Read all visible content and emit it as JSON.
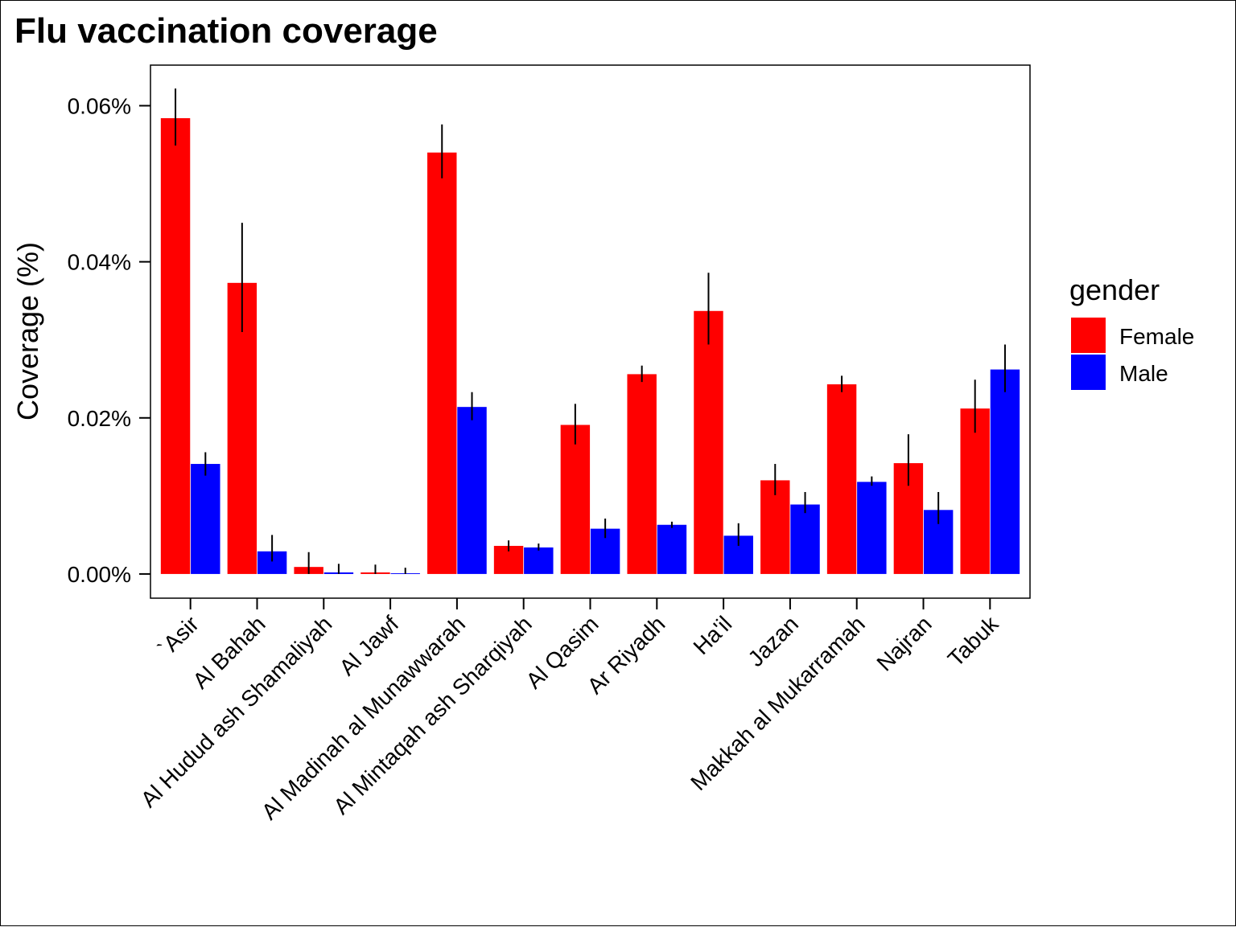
{
  "chart_data": {
    "type": "bar",
    "title": "Flu vaccination coverage",
    "xlabel": "",
    "ylabel": "Coverage (%)",
    "ylim": [
      -0.0031,
      0.0652
    ],
    "yticks": [
      0.0,
      0.02,
      0.04,
      0.06
    ],
    "ytick_labels": [
      "0.00%",
      "0.02%",
      "0.04%",
      "0.06%"
    ],
    "categories": [
      "`Asir",
      "Al Bahah",
      "Al Hudud ash Shamaliyah",
      "Al Jawf",
      "Al Madinah al Munawwarah",
      "Al Mintaqah ash Sharqiyah",
      "Al Qasim",
      "Ar Riyadh",
      "Ha'il",
      "Jazan",
      "Makkah al Mukarramah",
      "Najran",
      "Tabuk"
    ],
    "legend_title": "gender",
    "legend_position": "right",
    "grid": false,
    "series": [
      {
        "name": "Female",
        "color": "#ff0000",
        "values": [
          0.0584,
          0.0373,
          0.0009,
          0.0002,
          0.054,
          0.0036,
          0.0191,
          0.0256,
          0.0337,
          0.012,
          0.0243,
          0.0142,
          0.0212
        ],
        "err_low": [
          0.0549,
          0.031,
          0.0,
          0.0,
          0.0507,
          0.0029,
          0.0166,
          0.0246,
          0.0294,
          0.0101,
          0.0233,
          0.0113,
          0.0181
        ],
        "err_high": [
          0.0622,
          0.045,
          0.0028,
          0.0012,
          0.0576,
          0.0043,
          0.0218,
          0.0267,
          0.0386,
          0.0141,
          0.0254,
          0.0179,
          0.0249
        ]
      },
      {
        "name": "Male",
        "color": "#0000ff",
        "values": [
          0.0141,
          0.0029,
          0.0002,
          0.0001,
          0.0214,
          0.0034,
          0.0058,
          0.0063,
          0.0049,
          0.0089,
          0.0118,
          0.0082,
          0.0262
        ],
        "err_low": [
          0.0126,
          0.0016,
          0.0,
          0.0,
          0.0197,
          0.003,
          0.0046,
          0.0059,
          0.0036,
          0.0078,
          0.0113,
          0.0064,
          0.0233
        ],
        "err_high": [
          0.0156,
          0.005,
          0.0013,
          0.0008,
          0.0233,
          0.0039,
          0.0071,
          0.0067,
          0.0065,
          0.0105,
          0.0125,
          0.0105,
          0.0294
        ]
      }
    ]
  }
}
